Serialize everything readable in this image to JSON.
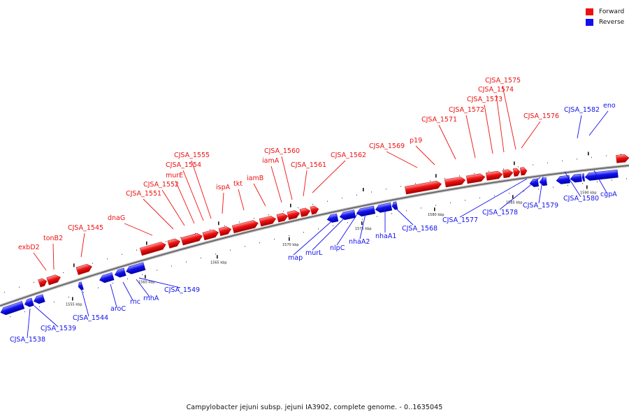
{
  "legend": {
    "forward": {
      "label": "Forward",
      "color": "#ee1111"
    },
    "reverse": {
      "label": "Reverse",
      "color": "#1111ee"
    }
  },
  "caption": "Campylobacter jejuni subsp. jejuni IA3902, complete genome. - 0..1635045",
  "ticks": [
    "1555 kbp",
    "1560 kbp",
    "1565 kbp",
    "1570 kbp",
    "1575 kbp",
    "1580 kbp",
    "1585 kbp",
    "1590 kbp"
  ],
  "forward_genes": [
    "exbD2",
    "tonB2",
    "CJSA_1545",
    "dnaG",
    "CJSA_1551",
    "CJSA_1552",
    "murE",
    "CJSA_1554",
    "CJSA_1555",
    "ispA",
    "tkt",
    "iamB",
    "iamA",
    "CJSA_1560",
    "CJSA_1561",
    "CJSA_1562",
    "CJSA_1569",
    "p19",
    "CJSA_1571",
    "CJSA_1572",
    "CJSA_1573",
    "CJSA_1574",
    "CJSA_1575",
    "CJSA_1576"
  ],
  "reverse_genes": [
    "CJSA_1538",
    "CJSA_1539",
    "CJSA_1544",
    "aroC",
    "rnc",
    "rnhA",
    "CJSA_1549",
    "map",
    "murL",
    "nlpC",
    "nhaA2",
    "nhaA1",
    "CJSA_1568",
    "CJSA_1577",
    "CJSA_1578",
    "CJSA_1579",
    "CJSA_1580",
    "cgpA",
    "CJSA_1582",
    "eno"
  ]
}
